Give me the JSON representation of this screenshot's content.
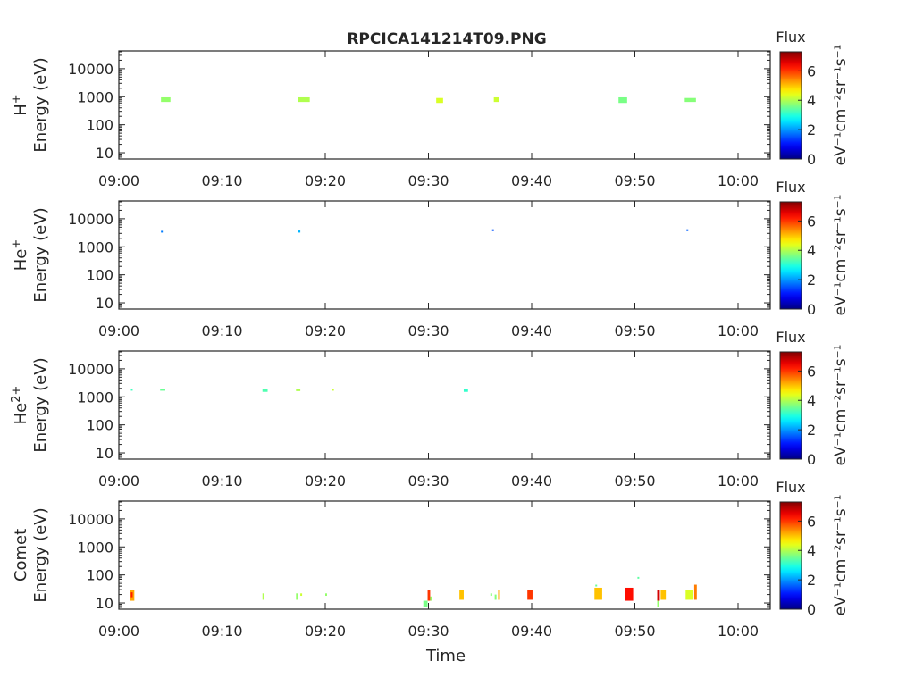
{
  "chart_data": {
    "type": "heatmap",
    "title": "RPCICA141214T09.PNG",
    "xlabel": "Time",
    "x_tick_labels": [
      "09:00",
      "09:10",
      "09:20",
      "09:30",
      "09:40",
      "09:50",
      "10:00"
    ],
    "xlim": [
      "09:00:00",
      "10:03:07"
    ],
    "y_scale": "log",
    "ylim": [
      6,
      43000
    ],
    "y_tick_labels": [
      "10",
      "100",
      "1000",
      "10000"
    ],
    "y_tick_values": [
      10,
      100,
      1000,
      10000
    ],
    "colorbar": {
      "label_title": "Flux",
      "label": "eV⁻¹cm⁻²sr⁻¹s⁻¹",
      "range": [
        0,
        7.3
      ],
      "tick_labels": [
        "0",
        "2",
        "4",
        "6"
      ],
      "tick_values": [
        0,
        2,
        4,
        6
      ],
      "colormap": "jet"
    },
    "panels": [
      {
        "species": "H",
        "species_sup": "+",
        "ylabel": "Energy (eV)",
        "blobs": [
          {
            "t0": "09:04:05",
            "t1": "09:05:00",
            "e0": 650,
            "e1": 950,
            "flux": 3.8
          },
          {
            "t0": "09:17:20",
            "t1": "09:18:30",
            "e0": 650,
            "e1": 950,
            "flux": 4.0
          },
          {
            "t0": "09:30:45",
            "t1": "09:31:25",
            "e0": 600,
            "e1": 900,
            "flux": 4.3
          },
          {
            "t0": "09:36:20",
            "t1": "09:36:50",
            "e0": 650,
            "e1": 950,
            "flux": 4.2
          },
          {
            "t0": "09:48:25",
            "t1": "09:49:15",
            "e0": 600,
            "e1": 950,
            "flux": 3.6
          },
          {
            "t0": "09:54:50",
            "t1": "09:55:55",
            "e0": 650,
            "e1": 900,
            "flux": 3.7
          }
        ]
      },
      {
        "species": "He",
        "species_sup": "+",
        "ylabel": "Energy (eV)",
        "blobs": [
          {
            "t0": "09:04:05",
            "t1": "09:04:15",
            "e0": 3200,
            "e1": 3700,
            "flux": 1.8
          },
          {
            "t0": "09:17:20",
            "t1": "09:17:35",
            "e0": 3200,
            "e1": 3800,
            "flux": 2.2
          },
          {
            "t0": "09:36:10",
            "t1": "09:36:20",
            "e0": 3700,
            "e1": 4200,
            "flux": 1.5
          },
          {
            "t0": "09:55:00",
            "t1": "09:55:10",
            "e0": 3700,
            "e1": 4200,
            "flux": 1.6
          }
        ]
      },
      {
        "species": "He",
        "species_sup": "2+",
        "ylabel": "Energy (eV)",
        "blobs": [
          {
            "t0": "09:01:10",
            "t1": "09:01:20",
            "e0": 1650,
            "e1": 1950,
            "flux": 3.2
          },
          {
            "t0": "09:04:00",
            "t1": "09:04:30",
            "e0": 1650,
            "e1": 1950,
            "flux": 3.5
          },
          {
            "t0": "09:13:55",
            "t1": "09:14:25",
            "e0": 1500,
            "e1": 1950,
            "flux": 3.3
          },
          {
            "t0": "09:17:10",
            "t1": "09:17:35",
            "e0": 1600,
            "e1": 1950,
            "flux": 4.0
          },
          {
            "t0": "09:20:40",
            "t1": "09:20:50",
            "e0": 1650,
            "e1": 1950,
            "flux": 4.2
          },
          {
            "t0": "09:33:25",
            "t1": "09:33:50",
            "e0": 1500,
            "e1": 1950,
            "flux": 3.1
          }
        ]
      },
      {
        "species": "Comet",
        "species_sup": "",
        "ylabel": "Energy (eV)",
        "blobs": [
          {
            "t0": "09:01:05",
            "t1": "09:01:30",
            "e0": 12,
            "e1": 30,
            "flux": 5.2
          },
          {
            "t0": "09:01:10",
            "t1": "09:01:20",
            "e0": 16,
            "e1": 24,
            "flux": 6.2
          },
          {
            "t0": "09:13:55",
            "t1": "09:14:05",
            "e0": 13,
            "e1": 22,
            "flux": 4.0
          },
          {
            "t0": "09:17:10",
            "t1": "09:17:20",
            "e0": 13,
            "e1": 22,
            "flux": 3.8
          },
          {
            "t0": "09:17:35",
            "t1": "09:17:45",
            "e0": 18,
            "e1": 22,
            "flux": 4.2
          },
          {
            "t0": "09:20:00",
            "t1": "09:20:10",
            "e0": 18,
            "e1": 22,
            "flux": 3.8
          },
          {
            "t0": "09:29:30",
            "t1": "09:29:55",
            "e0": 7,
            "e1": 12,
            "flux": 3.6
          },
          {
            "t0": "09:29:55",
            "t1": "09:30:10",
            "e0": 12,
            "e1": 30,
            "flux": 6.0
          },
          {
            "t0": "09:30:10",
            "t1": "09:30:20",
            "e0": 12,
            "e1": 17,
            "flux": 3.8
          },
          {
            "t0": "09:33:00",
            "t1": "09:33:25",
            "e0": 13,
            "e1": 30,
            "flux": 5.0
          },
          {
            "t0": "09:36:00",
            "t1": "09:36:10",
            "e0": 18,
            "e1": 22,
            "flux": 3.7
          },
          {
            "t0": "09:36:25",
            "t1": "09:36:35",
            "e0": 13,
            "e1": 20,
            "flux": 3.7
          },
          {
            "t0": "09:36:45",
            "t1": "09:36:55",
            "e0": 13,
            "e1": 30,
            "flux": 5.2
          },
          {
            "t0": "09:39:35",
            "t1": "09:40:05",
            "e0": 13,
            "e1": 30,
            "flux": 6.0
          },
          {
            "t0": "09:46:05",
            "t1": "09:46:50",
            "e0": 13,
            "e1": 35,
            "flux": 5.0
          },
          {
            "t0": "09:46:10",
            "t1": "09:46:20",
            "e0": 40,
            "e1": 45,
            "flux": 3.5
          },
          {
            "t0": "09:49:05",
            "t1": "09:49:50",
            "e0": 12,
            "e1": 35,
            "flux": 6.3
          },
          {
            "t0": "09:50:15",
            "t1": "09:50:25",
            "e0": 75,
            "e1": 85,
            "flux": 3.4
          },
          {
            "t0": "09:52:10",
            "t1": "09:52:25",
            "e0": 12,
            "e1": 30,
            "flux": 6.7
          },
          {
            "t0": "09:52:10",
            "t1": "09:52:20",
            "e0": 7,
            "e1": 12,
            "flux": 3.8
          },
          {
            "t0": "09:52:30",
            "t1": "09:53:00",
            "e0": 13,
            "e1": 30,
            "flux": 5.0
          },
          {
            "t0": "09:54:55",
            "t1": "09:55:40",
            "e0": 13,
            "e1": 30,
            "flux": 4.3
          },
          {
            "t0": "09:55:45",
            "t1": "09:56:00",
            "e0": 13,
            "e1": 45,
            "flux": 5.5
          }
        ]
      }
    ]
  }
}
